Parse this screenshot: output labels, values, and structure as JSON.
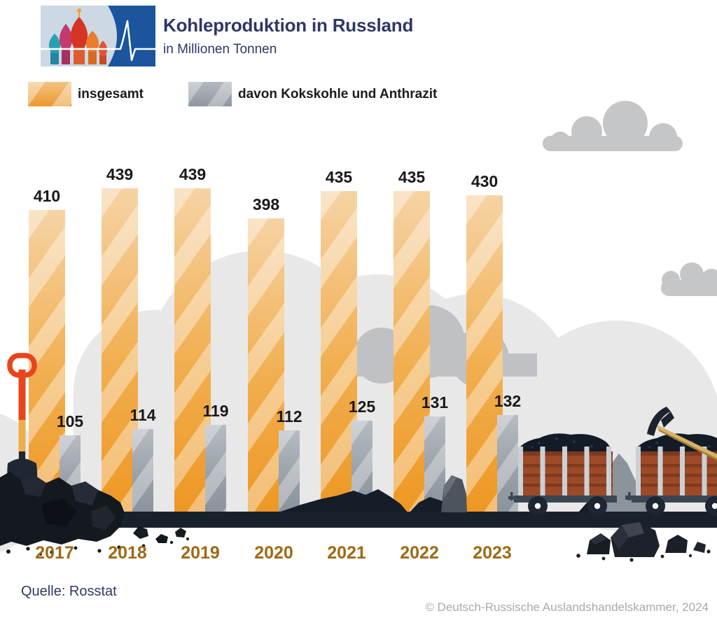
{
  "header": {
    "title": "Kohleproduktion in Russland",
    "subtitle": "in Millionen Tonnen"
  },
  "legend": {
    "total_label": "insgesamt",
    "coking_label": "davon Kokskohle und Anthrazit"
  },
  "chart_data": {
    "type": "bar",
    "title": "Kohleproduktion in Russland",
    "subtitle": "in Millionen Tonnen",
    "unit": "Millionen Tonnen",
    "categories": [
      "2017",
      "2018",
      "2019",
      "2020",
      "2021",
      "2022",
      "2023"
    ],
    "series": [
      {
        "name": "insgesamt",
        "color": "#efa02f",
        "values": [
          410,
          439,
          439,
          398,
          435,
          435,
          430
        ]
      },
      {
        "name": "davon Kokskohle und Anthrazit",
        "color": "#9aa2ab",
        "values": [
          105,
          114,
          119,
          112,
          125,
          131,
          132
        ]
      }
    ],
    "ylim": [
      0,
      439
    ],
    "grid": false,
    "legend_position": "top",
    "value_labels": true
  },
  "footer": {
    "source": "Quelle: Rosstat",
    "copyright": "© Deutsch-Russische Auslandshandelskammer, 2024"
  },
  "colors": {
    "accent_orange": "#efa02f",
    "accent_gray": "#9aa2ab",
    "title_navy": "#2e3766",
    "year_brown": "#9e6a14",
    "ground_dark": "#18222d",
    "cloud_light": "#e8e8e9",
    "cloud_mid": "#c5c6c8"
  }
}
